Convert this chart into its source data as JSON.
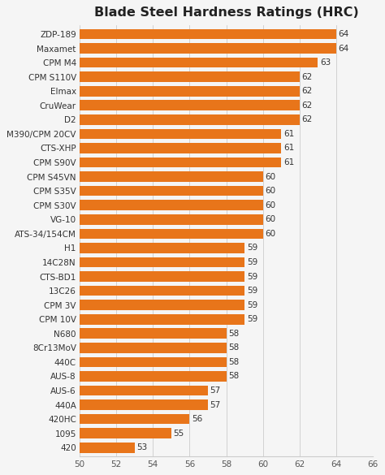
{
  "title": "Blade Steel Hardness Ratings (HRC)",
  "categories": [
    "ZDP-189",
    "Maxamet",
    "CPM M4",
    "CPM S110V",
    "Elmax",
    "CruWear",
    "D2",
    "M390/CPM 20CV",
    "CTS-XHP",
    "CPM S90V",
    "CPM S45VN",
    "CPM S35V",
    "CPM S30V",
    "VG-10",
    "ATS-34/154CM",
    "H1",
    "14C28N",
    "CTS-BD1",
    "13C26",
    "CPM 3V",
    "CPM 10V",
    "N680",
    "8Cr13MoV",
    "440C",
    "AUS-8",
    "AUS-6",
    "440A",
    "420HC",
    "1095",
    "420"
  ],
  "values": [
    64,
    64,
    63,
    62,
    62,
    62,
    62,
    61,
    61,
    61,
    60,
    60,
    60,
    60,
    60,
    59,
    59,
    59,
    59,
    59,
    59,
    58,
    58,
    58,
    58,
    57,
    57,
    56,
    55,
    53
  ],
  "bar_color": "#E8751A",
  "xlim": [
    50,
    66
  ],
  "xticks": [
    50,
    52,
    54,
    56,
    58,
    60,
    62,
    64,
    66
  ],
  "background_color": "#f5f5f5",
  "title_fontsize": 11.5,
  "label_fontsize": 7.5,
  "value_fontsize": 7.5
}
